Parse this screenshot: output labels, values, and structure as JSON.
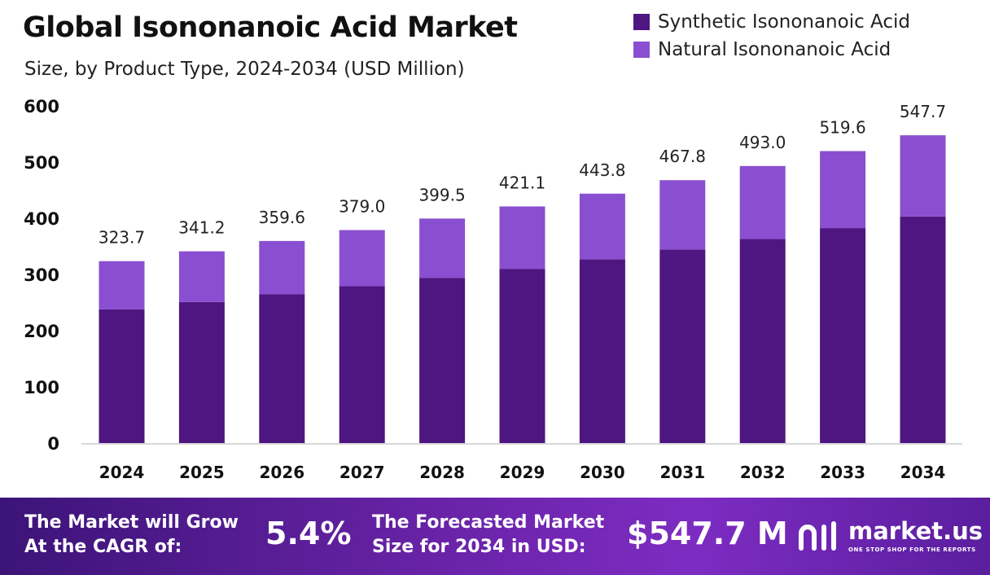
{
  "header": {
    "title": "Global Isononanoic Acid Market",
    "subtitle": "Size, by Product Type, 2024-2034 (USD Million)"
  },
  "colors": {
    "synthetic": "#4e1680",
    "natural": "#8a4fd0",
    "axis": "#cccccc",
    "text": "#111111"
  },
  "chart_data": {
    "type": "bar",
    "stacked": true,
    "title": "Global Isononanoic Acid Market",
    "subtitle": "Size, by Product Type, 2024-2034 (USD Million)",
    "categories": [
      "2024",
      "2025",
      "2026",
      "2027",
      "2028",
      "2029",
      "2030",
      "2031",
      "2032",
      "2033",
      "2034"
    ],
    "series": [
      {
        "name": "Synthetic Isononanoic Acid",
        "color": "#4e1680",
        "values": [
          238.0,
          251.0,
          265.0,
          279.0,
          294.0,
          310.0,
          327.0,
          344.5,
          363.0,
          382.5,
          403.0
        ]
      },
      {
        "name": "Natural Isononanoic Acid",
        "color": "#8a4fd0",
        "values": [
          85.7,
          90.2,
          94.6,
          100.0,
          105.5,
          111.1,
          116.8,
          123.3,
          130.0,
          137.1,
          144.7
        ]
      }
    ],
    "totals": [
      323.7,
      341.2,
      359.6,
      379.0,
      399.5,
      421.1,
      443.8,
      467.8,
      493.0,
      519.6,
      547.7
    ],
    "total_labels": [
      "323.7",
      "341.2",
      "359.6",
      "379.0",
      "399.5",
      "421.1",
      "443.8",
      "467.8",
      "493.0",
      "519.6",
      "547.7"
    ],
    "yticks": [
      0,
      100,
      200,
      300,
      400,
      500,
      600
    ],
    "ylim": [
      0,
      600
    ],
    "xlabel": "",
    "ylabel": "",
    "grid": false,
    "legend_position": "top-right"
  },
  "banner": {
    "cagr_label": "The Market will Grow\nAt the CAGR of:",
    "cagr_value": "5.4%",
    "forecast_label": "The Forecasted Market\nSize for 2034 in USD:",
    "forecast_value": "$547.7 M",
    "brand_name": "market.us",
    "brand_tagline": "ONE STOP SHOP FOR THE REPORTS"
  }
}
